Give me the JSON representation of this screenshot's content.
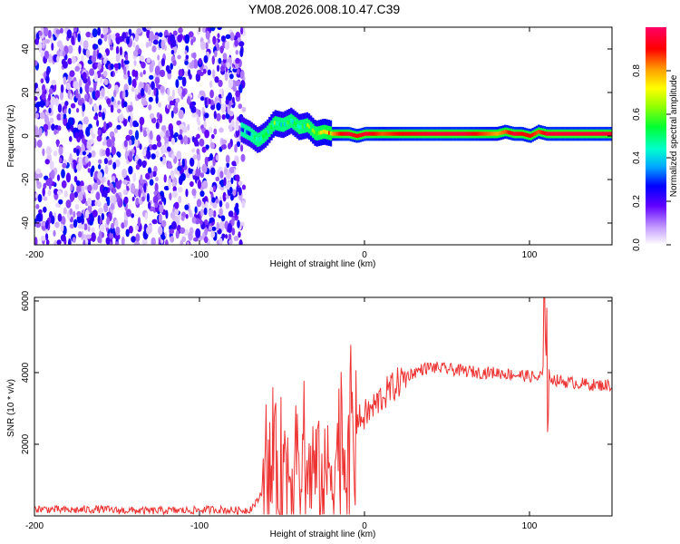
{
  "title": "YM08.2026.008.10.47.C39",
  "chart_data": [
    {
      "type": "heatmap",
      "xlabel": "Height of straight line (km)",
      "ylabel": "Frequency (Hz)",
      "xlim": [
        -200,
        150
      ],
      "ylim": [
        -50,
        50
      ],
      "xticks": [
        -200,
        -100,
        0,
        100
      ],
      "yticks": [
        -40,
        -20,
        0,
        20,
        40
      ],
      "noise_region_x": [
        -200,
        -73
      ],
      "ridge": {
        "x": [
          -75,
          -70,
          -65,
          -60,
          -55,
          -50,
          -45,
          -40,
          -35,
          -30,
          -25,
          -20,
          -15,
          -10,
          -5,
          0,
          10,
          20,
          40,
          60,
          80,
          85,
          90,
          95,
          100,
          105,
          110,
          150
        ],
        "freq": [
          3,
          1,
          -2,
          1,
          6,
          5,
          7,
          4,
          5,
          1,
          2,
          1,
          1,
          1,
          0,
          1,
          1,
          1,
          1,
          1,
          1,
          2,
          1,
          1,
          0,
          2,
          1,
          1
        ],
        "amplitude": [
          0.3,
          0.35,
          0.45,
          0.5,
          0.55,
          0.45,
          0.5,
          0.5,
          0.55,
          0.6,
          0.7,
          0.8,
          0.9,
          0.95,
          0.9,
          0.95,
          0.85,
          0.9,
          0.95,
          0.95,
          0.8,
          0.85,
          0.95,
          0.9,
          0.9,
          0.85,
          0.95,
          0.95
        ]
      },
      "colorbar": {
        "label": "Normalized spectral amplitude",
        "ticks": [
          "0.0",
          "0.2",
          "0.4",
          "0.6",
          "0.8"
        ],
        "range": [
          0,
          1
        ]
      }
    },
    {
      "type": "line",
      "xlabel": "Height of straight line (km)",
      "ylabel": "SNR (10 * v/v)",
      "xlim": [
        -200,
        150
      ],
      "ylim": [
        0,
        6100
      ],
      "xticks": [
        -200,
        -100,
        0,
        100
      ],
      "yticks": [
        2000,
        4000,
        6000
      ],
      "series": [
        {
          "name": "SNR",
          "color": "#ee3333",
          "x": [
            -200,
            -190,
            -180,
            -170,
            -160,
            -150,
            -140,
            -130,
            -120,
            -110,
            -100,
            -90,
            -80,
            -70,
            -65,
            -60,
            -55,
            -50,
            -45,
            -40,
            -35,
            -30,
            -25,
            -20,
            -15,
            -10,
            -5,
            0,
            5,
            10,
            15,
            20,
            25,
            30,
            35,
            40,
            50,
            60,
            70,
            80,
            90,
            100,
            105,
            108,
            110,
            112,
            115,
            120,
            130,
            140,
            150
          ],
          "y": [
            200,
            180,
            160,
            170,
            190,
            150,
            150,
            140,
            150,
            150,
            160,
            180,
            150,
            160,
            400,
            900,
            1300,
            1500,
            1300,
            1200,
            1100,
            1300,
            900,
            1400,
            1900,
            2000,
            2600,
            2800,
            3000,
            3300,
            3500,
            3700,
            3900,
            4000,
            4100,
            4150,
            4100,
            4050,
            4000,
            4000,
            3950,
            3900,
            3850,
            3950,
            5700,
            3900,
            3800,
            3750,
            3700,
            3650,
            3650
          ]
        }
      ]
    }
  ]
}
